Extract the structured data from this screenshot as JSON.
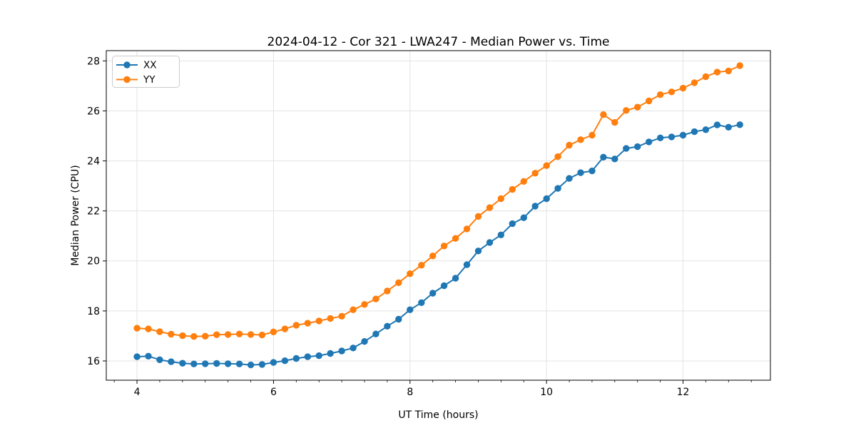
{
  "chart_data": {
    "type": "line",
    "title": "2024-04-12 - Cor 321 - LWA247 - Median Power vs. Time",
    "xlabel": "UT Time (hours)",
    "ylabel": "Median Power (CPU)",
    "xlim": [
      3.55,
      13.28
    ],
    "ylim": [
      15.23,
      28.41
    ],
    "x_ticks": [
      4,
      6,
      8,
      10,
      12
    ],
    "y_ticks": [
      16,
      18,
      20,
      22,
      24,
      26,
      28
    ],
    "x_minor_step": 0.33333,
    "grid": true,
    "grid_color": "#e3e3e3",
    "legend_position": "upper left",
    "marker": "circle",
    "x": [
      4.0,
      4.167,
      4.333,
      4.5,
      4.667,
      4.833,
      5.0,
      5.167,
      5.333,
      5.5,
      5.667,
      5.833,
      6.0,
      6.167,
      6.333,
      6.5,
      6.667,
      6.833,
      7.0,
      7.167,
      7.333,
      7.5,
      7.667,
      7.833,
      8.0,
      8.167,
      8.333,
      8.5,
      8.667,
      8.833,
      9.0,
      9.167,
      9.333,
      9.5,
      9.667,
      9.833,
      10.0,
      10.167,
      10.333,
      10.5,
      10.667,
      10.833,
      11.0,
      11.167,
      11.333,
      11.5,
      11.667,
      11.833,
      12.0,
      12.167,
      12.333,
      12.5,
      12.667,
      12.833
    ],
    "series": [
      {
        "name": "XX",
        "color": "#1f77b4",
        "values": [
          16.17,
          16.19,
          16.05,
          15.97,
          15.91,
          15.88,
          15.89,
          15.9,
          15.89,
          15.88,
          15.84,
          15.86,
          15.94,
          16.01,
          16.1,
          16.17,
          16.21,
          16.3,
          16.4,
          16.52,
          16.78,
          17.08,
          17.39,
          17.67,
          18.05,
          18.33,
          18.71,
          19.01,
          19.31,
          19.85,
          20.4,
          20.74,
          21.04,
          21.49,
          21.73,
          22.19,
          22.49,
          22.9,
          23.3,
          23.53,
          23.6,
          24.15,
          24.08,
          24.5,
          24.57,
          24.76,
          24.92,
          24.96,
          25.03,
          25.17,
          25.25,
          25.44,
          25.35,
          25.45
        ]
      },
      {
        "name": "YY",
        "color": "#ff7f0e",
        "values": [
          17.31,
          17.28,
          17.17,
          17.07,
          17.01,
          16.98,
          16.99,
          17.05,
          17.06,
          17.08,
          17.06,
          17.04,
          17.16,
          17.28,
          17.43,
          17.51,
          17.6,
          17.7,
          17.79,
          18.05,
          18.26,
          18.48,
          18.8,
          19.13,
          19.49,
          19.83,
          20.2,
          20.6,
          20.9,
          21.28,
          21.78,
          22.13,
          22.49,
          22.86,
          23.18,
          23.51,
          23.81,
          24.17,
          24.63,
          24.85,
          25.03,
          25.85,
          25.54,
          26.02,
          26.15,
          26.4,
          26.65,
          26.76,
          26.91,
          27.13,
          27.37,
          27.55,
          27.6,
          27.81
        ]
      }
    ]
  }
}
